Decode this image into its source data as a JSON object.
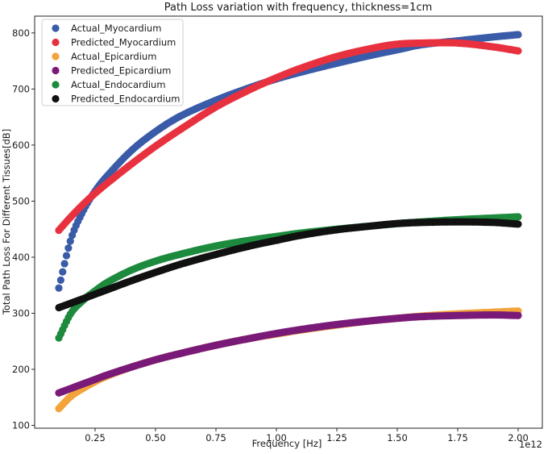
{
  "chart_data": {
    "type": "scatter",
    "title": "Path Loss variation with frequency, thickness=1cm",
    "xlabel": "Frequency [Hz]",
    "ylabel": "Total Path Loss For Different Tissues[dB]",
    "x_offset_label": "1e12",
    "xlim": [
      0.0,
      2.1
    ],
    "ylim": [
      95,
      830
    ],
    "xticks": [
      0.25,
      0.5,
      0.75,
      1.0,
      1.25,
      1.5,
      1.75,
      2.0
    ],
    "xtick_labels": [
      "0.25",
      "0.50",
      "0.75",
      "1.00",
      "1.25",
      "1.50",
      "1.75",
      "2.00"
    ],
    "yticks": [
      100,
      200,
      300,
      400,
      500,
      600,
      700,
      800
    ],
    "ytick_labels": [
      "100",
      "200",
      "300",
      "400",
      "500",
      "600",
      "700",
      "800"
    ],
    "grid": false,
    "legend_position": "top-left",
    "x": [
      0.1,
      0.15,
      0.2,
      0.25,
      0.3,
      0.4,
      0.5,
      0.6,
      0.75,
      0.9,
      1.0,
      1.1,
      1.25,
      1.4,
      1.5,
      1.6,
      1.75,
      1.9,
      2.0
    ],
    "series": [
      {
        "name": "Actual_Myocardium",
        "color": "#3a5ba8",
        "values": [
          345,
          432,
          482,
          518,
          545,
          590,
          624,
          651,
          680,
          704,
          718,
          730,
          746,
          761,
          770,
          779,
          786,
          793,
          797
        ]
      },
      {
        "name": "Predicted_Myocardium",
        "color": "#e8313f",
        "values": [
          448,
          472,
          494,
          514,
          532,
          566,
          598,
          627,
          668,
          701,
          720,
          737,
          758,
          773,
          780,
          782,
          782,
          775,
          768
        ]
      },
      {
        "name": "Actual_Epicardium",
        "color": "#f2a33a",
        "values": [
          130,
          152,
          166,
          178,
          188,
          204,
          217,
          228,
          243,
          256,
          263,
          270,
          279,
          287,
          291,
          295,
          299,
          302,
          304
        ]
      },
      {
        "name": "Predicted_Epicardium",
        "color": "#7a1a78",
        "values": [
          158,
          166,
          174,
          182,
          190,
          204,
          217,
          228,
          243,
          256,
          264,
          271,
          280,
          287,
          291,
          294,
          296,
          297,
          296
        ]
      },
      {
        "name": "Actual_Endocardium",
        "color": "#1d8a3d",
        "values": [
          256,
          300,
          323,
          340,
          355,
          377,
          393,
          405,
          420,
          431,
          437,
          443,
          450,
          456,
          460,
          463,
          467,
          470,
          472
        ]
      },
      {
        "name": "Predicted_Endocardium",
        "color": "#111111",
        "values": [
          310,
          318,
          326,
          334,
          342,
          358,
          373,
          387,
          405,
          421,
          430,
          439,
          449,
          456,
          460,
          462,
          463,
          462,
          459
        ]
      }
    ]
  }
}
